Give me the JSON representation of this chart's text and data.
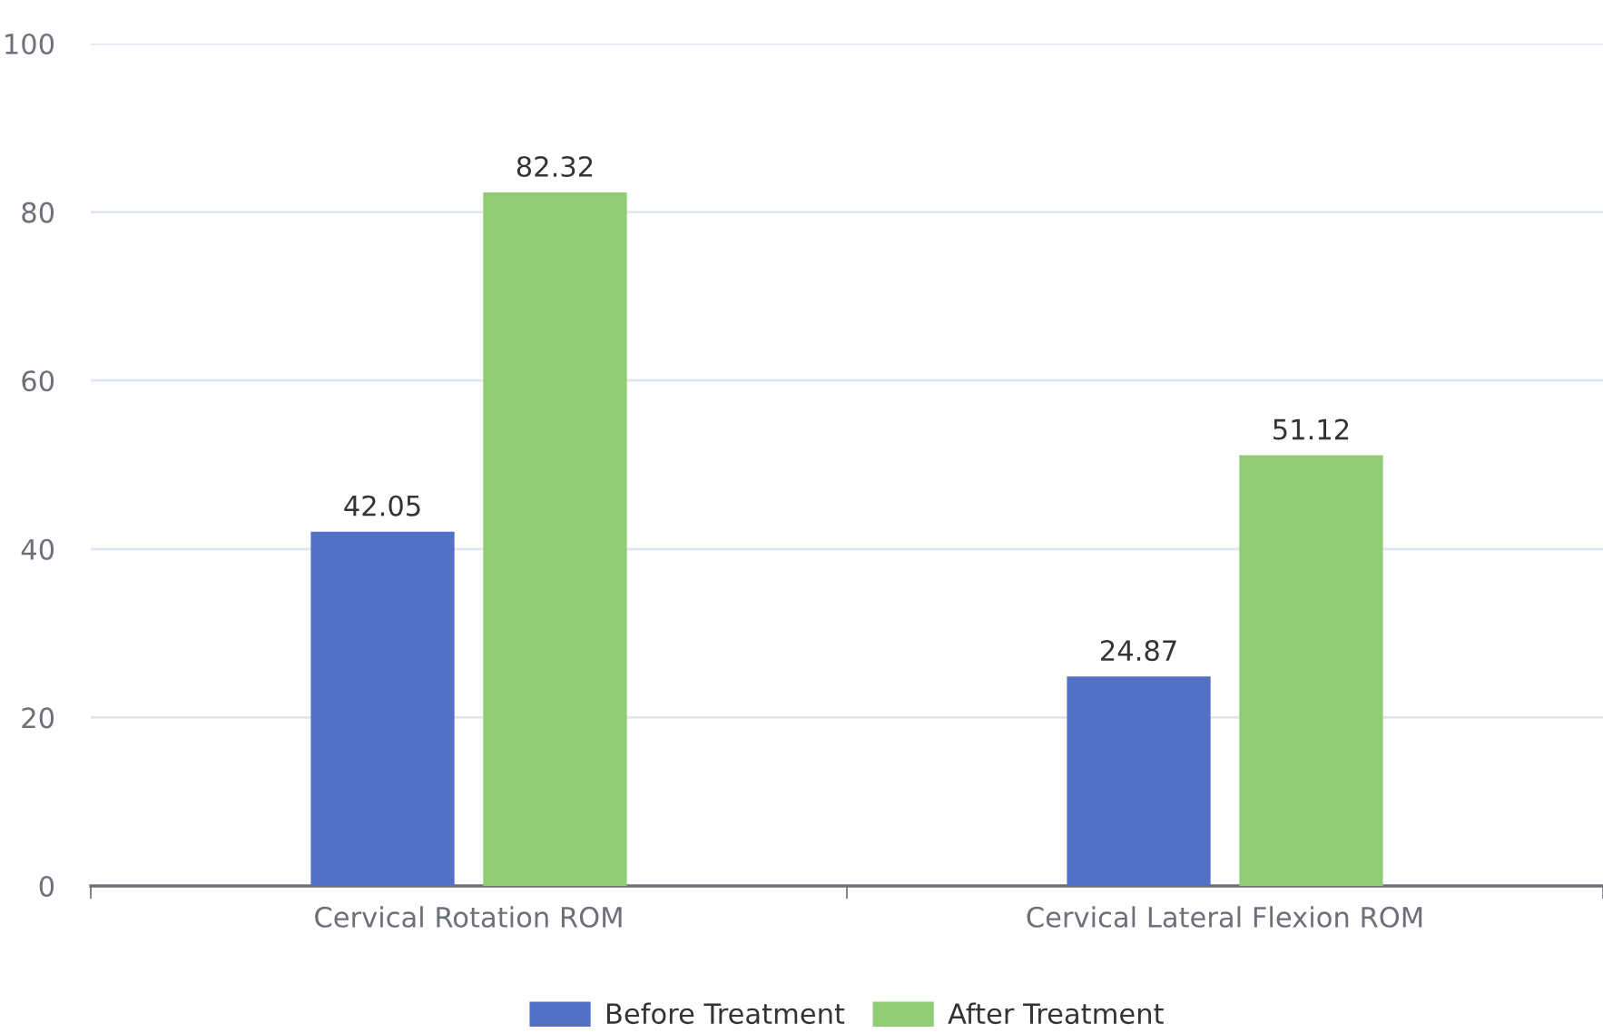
{
  "chart_data": {
    "type": "bar",
    "categories": [
      "Cervical Rotation ROM",
      "Cervical Lateral Flexion ROM"
    ],
    "series": [
      {
        "name": "Before Treatment",
        "color": "#5470c6",
        "values": [
          42.05,
          24.87
        ]
      },
      {
        "name": "After Treatment",
        "color": "#91cc75",
        "values": [
          82.32,
          51.12
        ]
      }
    ],
    "ylim": [
      0,
      100
    ],
    "yticks": [
      0,
      20,
      40,
      60,
      80,
      100
    ],
    "grid": "y",
    "legend": "bottom",
    "data_labels": true
  }
}
